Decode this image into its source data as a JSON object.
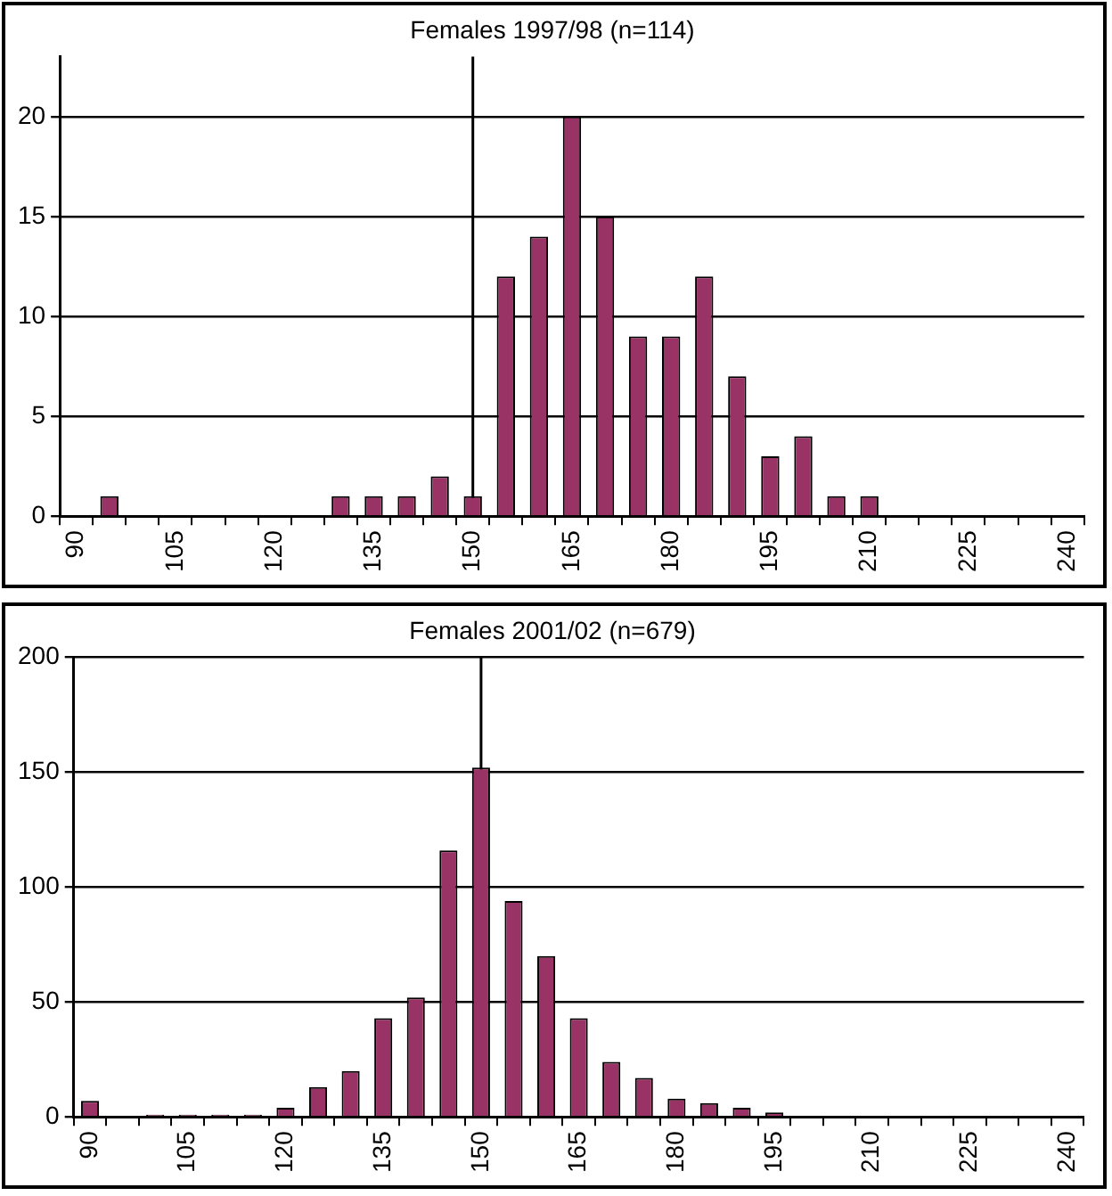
{
  "chart_data": [
    {
      "type": "bar",
      "title": "Females 1997/98 (n=114)",
      "categories": [
        "90",
        null,
        null,
        "105",
        null,
        null,
        "120",
        null,
        null,
        "135",
        null,
        null,
        "150",
        null,
        null,
        "165",
        null,
        null,
        "180",
        null,
        null,
        "195",
        null,
        null,
        "210",
        null,
        null,
        "225",
        null,
        null,
        "240"
      ],
      "values": [
        0,
        1,
        0,
        0,
        0,
        0,
        0,
        0,
        1,
        1,
        1,
        2,
        1,
        12,
        14,
        20,
        15,
        9,
        9,
        12,
        7,
        3,
        4,
        1,
        1,
        0,
        0,
        0,
        0,
        0,
        0
      ],
      "color": "#993366",
      "ylim": [
        0,
        23
      ],
      "yticks": [
        0,
        5,
        10,
        15,
        20
      ],
      "grid": "y",
      "legend": false,
      "ref_lines": [
        {
          "axis": "x",
          "value": "150"
        }
      ]
    },
    {
      "type": "bar",
      "title": "Females 2001/02 (n=679)",
      "categories": [
        "90",
        null,
        null,
        "105",
        null,
        null,
        "120",
        null,
        null,
        "135",
        null,
        null,
        "150",
        null,
        null,
        "165",
        null,
        null,
        "180",
        null,
        null,
        "195",
        null,
        null,
        "210",
        null,
        null,
        "225",
        null,
        null,
        "240"
      ],
      "values": [
        7,
        0,
        1,
        1,
        1,
        1,
        4,
        13,
        20,
        43,
        52,
        116,
        152,
        94,
        70,
        43,
        24,
        17,
        8,
        6,
        4,
        2,
        0,
        0,
        0,
        0,
        0,
        0,
        0,
        0,
        0
      ],
      "color": "#993366",
      "ylim": [
        0,
        200
      ],
      "yticks": [
        0,
        50,
        100,
        150,
        200
      ],
      "grid": "y",
      "legend": false,
      "ref_lines": [
        {
          "axis": "x",
          "value": "150"
        }
      ]
    }
  ]
}
